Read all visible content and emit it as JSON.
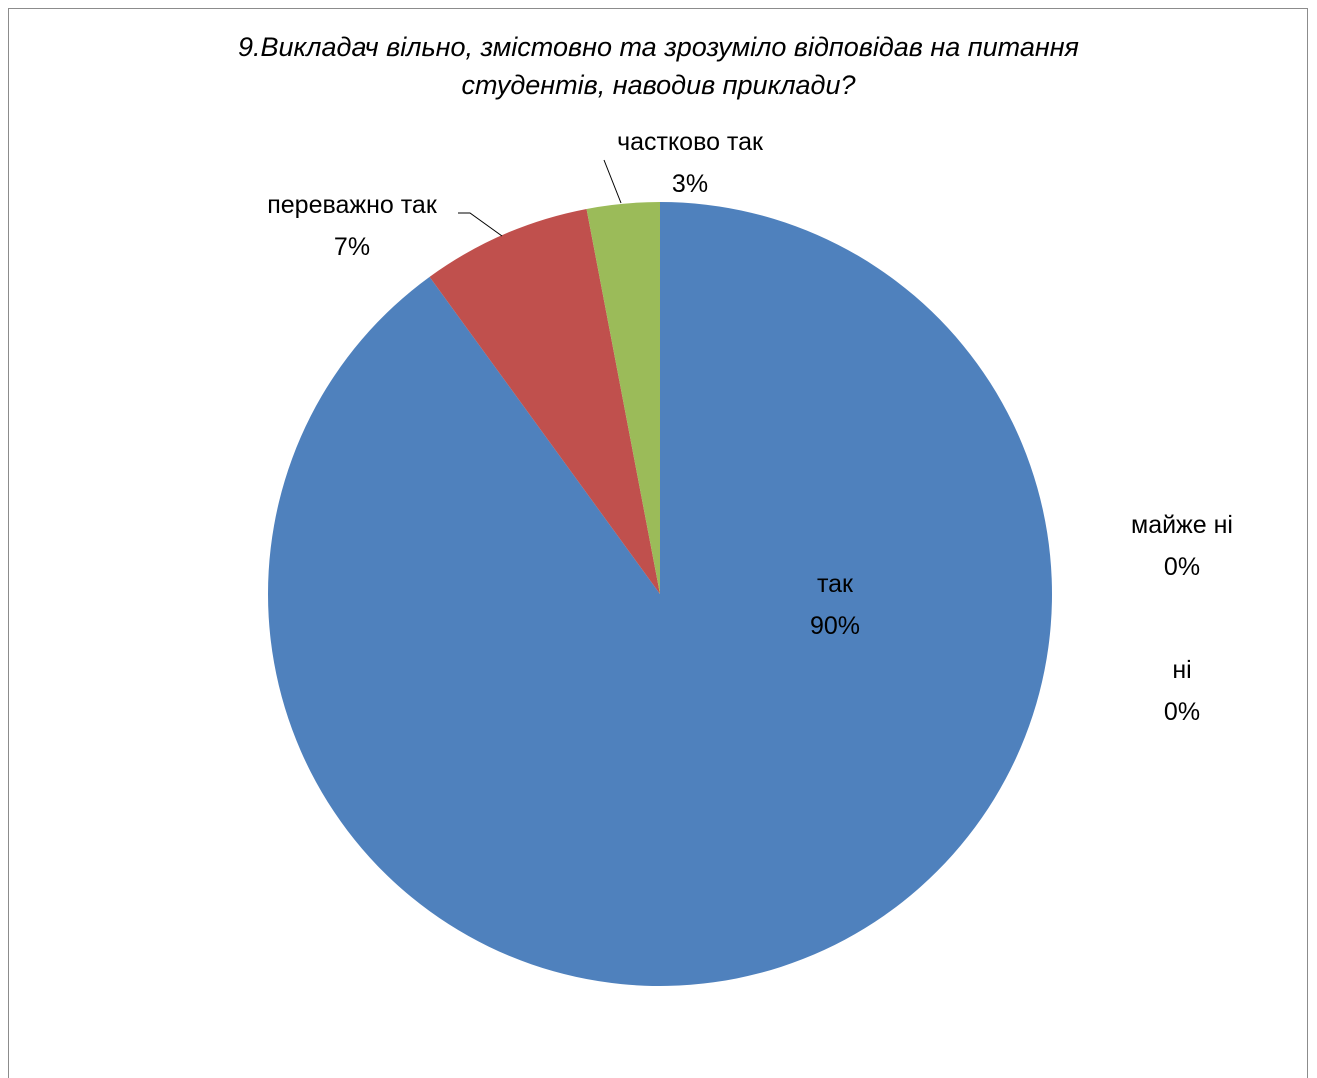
{
  "chart_data": {
    "type": "pie",
    "title_lines": [
      "9.Викладач вільно, змістовно та зрозуміло відповідав на питання",
      "студентів, наводив приклади?"
    ],
    "start_angle_deg": 0,
    "direction": "clockwise",
    "slices": [
      {
        "name": "так",
        "value": 90,
        "label": "90%",
        "color": "#4F81BD"
      },
      {
        "name": "майже ні",
        "value": 0,
        "label": "0%",
        "color": "#8064A2"
      },
      {
        "name": "ні",
        "value": 0,
        "label": "0%",
        "color": "#4BACC6"
      },
      {
        "name": "переважно так",
        "value": 7,
        "label": "7%",
        "color": "#C0504D"
      },
      {
        "name": "частково так",
        "value": 3,
        "label": "3%",
        "color": "#9BBB59"
      }
    ],
    "legend": "none"
  }
}
